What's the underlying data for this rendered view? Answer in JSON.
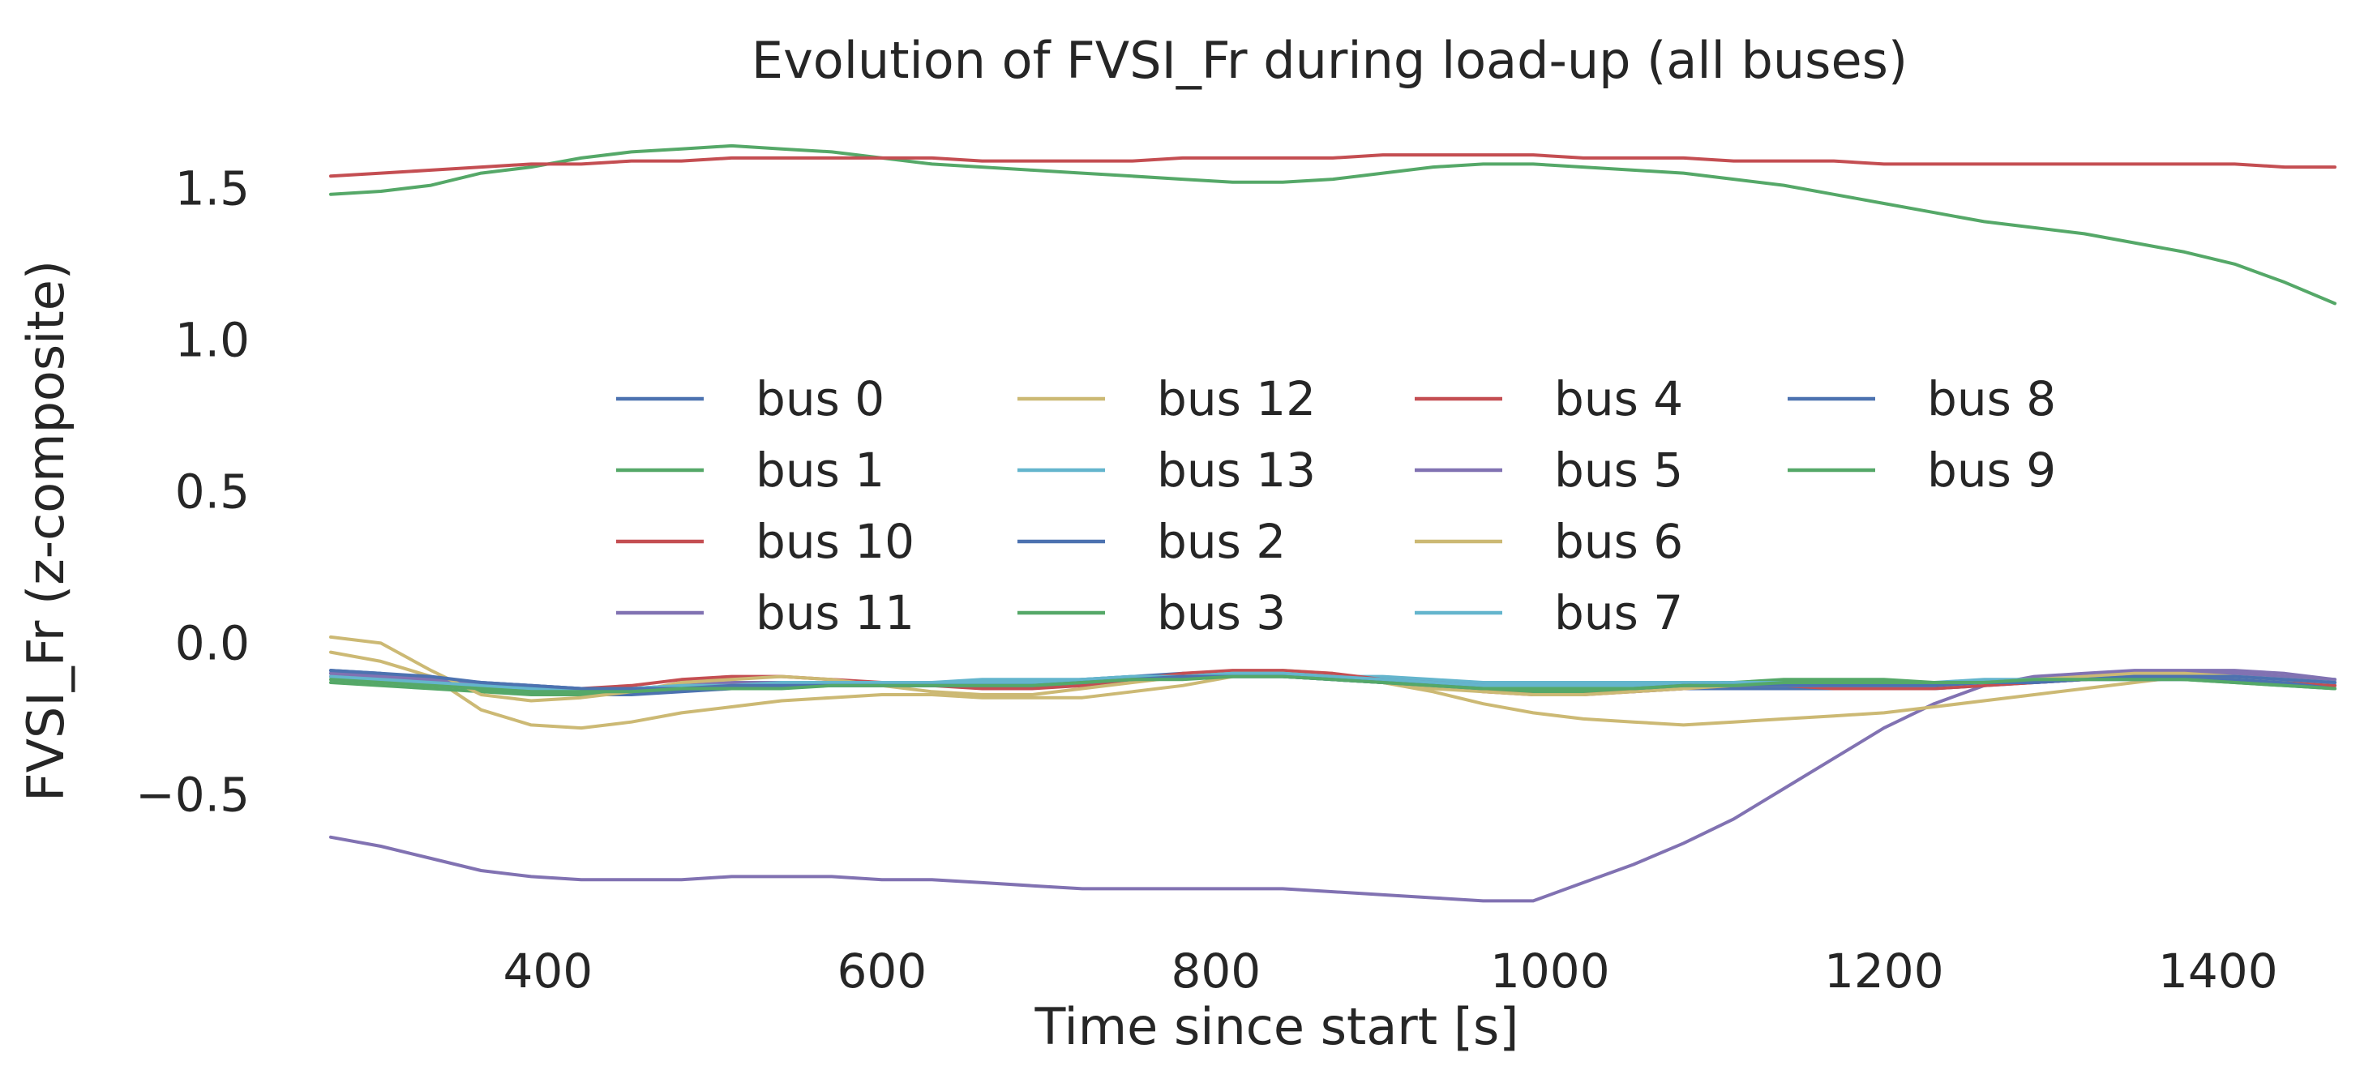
{
  "chart_data": {
    "type": "line",
    "title": "Evolution of FVSI_Fr during load-up (all buses)",
    "xlabel": "Time since start [s]",
    "ylabel": "FVSI_Fr (z-composite)",
    "xlim": [
      270,
      1470
    ],
    "ylim": [
      -0.98,
      1.72
    ],
    "xticks": [
      400,
      600,
      800,
      1000,
      1200,
      1400
    ],
    "yticks": [
      1.5,
      1.0,
      0.5,
      0.0,
      -0.5
    ],
    "xtick_labels": [
      "400",
      "600",
      "800",
      "1000",
      "1200",
      "1400"
    ],
    "ytick_labels": [
      "1.5",
      "1.0",
      "0.5",
      "0.0",
      "−0.5"
    ],
    "grid": false,
    "legend": {
      "location": "center",
      "columns": 4
    },
    "x": [
      270,
      300,
      330,
      360,
      390,
      420,
      450,
      480,
      510,
      540,
      570,
      600,
      630,
      660,
      690,
      720,
      750,
      780,
      810,
      840,
      870,
      900,
      930,
      960,
      990,
      1020,
      1050,
      1080,
      1110,
      1140,
      1170,
      1200,
      1230,
      1260,
      1290,
      1320,
      1350,
      1380,
      1410,
      1440,
      1470
    ],
    "series": [
      {
        "name": "bus 0",
        "color": "#4c72b0",
        "values": [
          -0.09,
          -0.1,
          -0.12,
          -0.14,
          -0.15,
          -0.16,
          -0.16,
          -0.15,
          -0.14,
          -0.14,
          -0.13,
          -0.13,
          -0.13,
          -0.13,
          -0.13,
          -0.12,
          -0.11,
          -0.1,
          -0.1,
          -0.1,
          -0.11,
          -0.12,
          -0.13,
          -0.14,
          -0.15,
          -0.15,
          -0.15,
          -0.14,
          -0.14,
          -0.14,
          -0.14,
          -0.14,
          -0.14,
          -0.13,
          -0.13,
          -0.12,
          -0.11,
          -0.11,
          -0.11,
          -0.12,
          -0.13
        ]
      },
      {
        "name": "bus 1",
        "color": "#55a868",
        "values": [
          1.48,
          1.49,
          1.51,
          1.55,
          1.57,
          1.6,
          1.62,
          1.63,
          1.64,
          1.63,
          1.62,
          1.6,
          1.58,
          1.57,
          1.56,
          1.55,
          1.54,
          1.53,
          1.52,
          1.52,
          1.53,
          1.55,
          1.57,
          1.58,
          1.58,
          1.57,
          1.56,
          1.55,
          1.53,
          1.51,
          1.48,
          1.45,
          1.42,
          1.39,
          1.37,
          1.35,
          1.32,
          1.29,
          1.25,
          1.19,
          1.12
        ]
      },
      {
        "name": "bus 10",
        "color": "#c44e52",
        "values": [
          1.54,
          1.55,
          1.56,
          1.57,
          1.58,
          1.58,
          1.59,
          1.59,
          1.6,
          1.6,
          1.6,
          1.6,
          1.6,
          1.59,
          1.59,
          1.59,
          1.59,
          1.6,
          1.6,
          1.6,
          1.6,
          1.61,
          1.61,
          1.61,
          1.61,
          1.6,
          1.6,
          1.6,
          1.59,
          1.59,
          1.59,
          1.58,
          1.58,
          1.58,
          1.58,
          1.58,
          1.58,
          1.58,
          1.58,
          1.57,
          1.57
        ]
      },
      {
        "name": "bus 11",
        "color": "#8172b2",
        "values": [
          -0.64,
          -0.67,
          -0.71,
          -0.75,
          -0.77,
          -0.78,
          -0.78,
          -0.78,
          -0.77,
          -0.77,
          -0.77,
          -0.78,
          -0.78,
          -0.79,
          -0.8,
          -0.81,
          -0.81,
          -0.81,
          -0.81,
          -0.81,
          -0.82,
          -0.83,
          -0.84,
          -0.85,
          -0.85,
          -0.79,
          -0.73,
          -0.66,
          -0.58,
          -0.48,
          -0.38,
          -0.28,
          -0.2,
          -0.14,
          -0.11,
          -0.1,
          -0.09,
          -0.09,
          -0.09,
          -0.1,
          -0.12
        ]
      },
      {
        "name": "bus 12",
        "color": "#ccb974",
        "values": [
          -0.03,
          -0.06,
          -0.11,
          -0.22,
          -0.27,
          -0.28,
          -0.26,
          -0.23,
          -0.21,
          -0.19,
          -0.18,
          -0.17,
          -0.17,
          -0.18,
          -0.18,
          -0.18,
          -0.16,
          -0.14,
          -0.11,
          -0.09,
          -0.1,
          -0.13,
          -0.16,
          -0.2,
          -0.23,
          -0.25,
          -0.26,
          -0.27,
          -0.26,
          -0.25,
          -0.24,
          -0.23,
          -0.21,
          -0.19,
          -0.17,
          -0.15,
          -0.13,
          -0.11,
          -0.11,
          -0.12,
          -0.13
        ]
      },
      {
        "name": "bus 13",
        "color": "#64b5cd",
        "values": [
          -0.1,
          -0.11,
          -0.12,
          -0.13,
          -0.14,
          -0.15,
          -0.15,
          -0.14,
          -0.14,
          -0.14,
          -0.14,
          -0.13,
          -0.13,
          -0.12,
          -0.12,
          -0.12,
          -0.11,
          -0.11,
          -0.1,
          -0.1,
          -0.11,
          -0.11,
          -0.12,
          -0.13,
          -0.13,
          -0.13,
          -0.13,
          -0.13,
          -0.13,
          -0.13,
          -0.13,
          -0.13,
          -0.13,
          -0.12,
          -0.12,
          -0.12,
          -0.11,
          -0.11,
          -0.11,
          -0.12,
          -0.12
        ]
      },
      {
        "name": "bus 2",
        "color": "#4c72b0",
        "values": [
          -0.1,
          -0.11,
          -0.13,
          -0.15,
          -0.16,
          -0.17,
          -0.17,
          -0.16,
          -0.15,
          -0.14,
          -0.14,
          -0.14,
          -0.14,
          -0.14,
          -0.14,
          -0.13,
          -0.12,
          -0.11,
          -0.11,
          -0.11,
          -0.12,
          -0.13,
          -0.14,
          -0.15,
          -0.16,
          -0.16,
          -0.16,
          -0.15,
          -0.15,
          -0.15,
          -0.15,
          -0.15,
          -0.15,
          -0.14,
          -0.13,
          -0.12,
          -0.12,
          -0.12,
          -0.12,
          -0.13,
          -0.14
        ]
      },
      {
        "name": "bus 3",
        "color": "#55a868",
        "values": [
          -0.13,
          -0.14,
          -0.15,
          -0.16,
          -0.17,
          -0.17,
          -0.16,
          -0.15,
          -0.15,
          -0.14,
          -0.14,
          -0.14,
          -0.14,
          -0.14,
          -0.14,
          -0.13,
          -0.12,
          -0.11,
          -0.11,
          -0.11,
          -0.12,
          -0.13,
          -0.14,
          -0.15,
          -0.16,
          -0.16,
          -0.15,
          -0.14,
          -0.13,
          -0.12,
          -0.12,
          -0.12,
          -0.13,
          -0.13,
          -0.12,
          -0.12,
          -0.11,
          -0.12,
          -0.13,
          -0.14,
          -0.15
        ]
      },
      {
        "name": "bus 4",
        "color": "#c44e52",
        "values": [
          -0.11,
          -0.12,
          -0.13,
          -0.14,
          -0.15,
          -0.15,
          -0.14,
          -0.12,
          -0.11,
          -0.11,
          -0.12,
          -0.13,
          -0.14,
          -0.15,
          -0.15,
          -0.14,
          -0.12,
          -0.1,
          -0.09,
          -0.09,
          -0.1,
          -0.12,
          -0.14,
          -0.16,
          -0.17,
          -0.17,
          -0.16,
          -0.15,
          -0.14,
          -0.14,
          -0.15,
          -0.15,
          -0.15,
          -0.14,
          -0.13,
          -0.12,
          -0.11,
          -0.11,
          -0.11,
          -0.12,
          -0.14
        ]
      },
      {
        "name": "bus 5",
        "color": "#8172b2",
        "values": [
          -0.1,
          -0.11,
          -0.12,
          -0.13,
          -0.14,
          -0.15,
          -0.15,
          -0.14,
          -0.13,
          -0.13,
          -0.13,
          -0.13,
          -0.14,
          -0.14,
          -0.14,
          -0.13,
          -0.12,
          -0.11,
          -0.1,
          -0.1,
          -0.11,
          -0.12,
          -0.13,
          -0.14,
          -0.15,
          -0.15,
          -0.15,
          -0.14,
          -0.14,
          -0.14,
          -0.14,
          -0.14,
          -0.14,
          -0.13,
          -0.12,
          -0.11,
          -0.1,
          -0.1,
          -0.1,
          -0.11,
          -0.12
        ]
      },
      {
        "name": "bus 6",
        "color": "#ccb974",
        "values": [
          0.02,
          0.0,
          -0.09,
          -0.17,
          -0.19,
          -0.18,
          -0.16,
          -0.13,
          -0.12,
          -0.11,
          -0.12,
          -0.14,
          -0.16,
          -0.17,
          -0.17,
          -0.15,
          -0.13,
          -0.11,
          -0.1,
          -0.1,
          -0.11,
          -0.13,
          -0.15,
          -0.16,
          -0.17,
          -0.17,
          -0.16,
          -0.15,
          -0.14,
          -0.14,
          -0.14,
          -0.14,
          -0.14,
          -0.13,
          -0.12,
          -0.11,
          -0.1,
          -0.1,
          -0.11,
          -0.12,
          -0.13
        ]
      },
      {
        "name": "bus 7",
        "color": "#64b5cd",
        "values": [
          -0.11,
          -0.12,
          -0.13,
          -0.14,
          -0.15,
          -0.15,
          -0.15,
          -0.14,
          -0.14,
          -0.13,
          -0.13,
          -0.13,
          -0.13,
          -0.13,
          -0.13,
          -0.12,
          -0.11,
          -0.11,
          -0.1,
          -0.1,
          -0.11,
          -0.12,
          -0.13,
          -0.14,
          -0.14,
          -0.14,
          -0.14,
          -0.14,
          -0.13,
          -0.13,
          -0.13,
          -0.13,
          -0.13,
          -0.13,
          -0.12,
          -0.12,
          -0.11,
          -0.11,
          -0.11,
          -0.12,
          -0.13
        ]
      },
      {
        "name": "bus 8",
        "color": "#4c72b0",
        "values": [
          -0.09,
          -0.1,
          -0.11,
          -0.13,
          -0.14,
          -0.15,
          -0.15,
          -0.15,
          -0.14,
          -0.14,
          -0.14,
          -0.14,
          -0.14,
          -0.14,
          -0.14,
          -0.13,
          -0.12,
          -0.11,
          -0.11,
          -0.11,
          -0.12,
          -0.13,
          -0.14,
          -0.15,
          -0.15,
          -0.15,
          -0.15,
          -0.14,
          -0.14,
          -0.14,
          -0.14,
          -0.14,
          -0.14,
          -0.13,
          -0.13,
          -0.12,
          -0.11,
          -0.11,
          -0.11,
          -0.12,
          -0.13
        ]
      },
      {
        "name": "bus 9",
        "color": "#55a868",
        "values": [
          -0.12,
          -0.13,
          -0.14,
          -0.15,
          -0.16,
          -0.16,
          -0.16,
          -0.15,
          -0.15,
          -0.15,
          -0.14,
          -0.14,
          -0.14,
          -0.14,
          -0.14,
          -0.13,
          -0.12,
          -0.12,
          -0.11,
          -0.11,
          -0.12,
          -0.13,
          -0.14,
          -0.15,
          -0.15,
          -0.15,
          -0.15,
          -0.14,
          -0.14,
          -0.13,
          -0.13,
          -0.13,
          -0.13,
          -0.13,
          -0.12,
          -0.12,
          -0.12,
          -0.12,
          -0.13,
          -0.14,
          -0.15
        ]
      }
    ]
  }
}
